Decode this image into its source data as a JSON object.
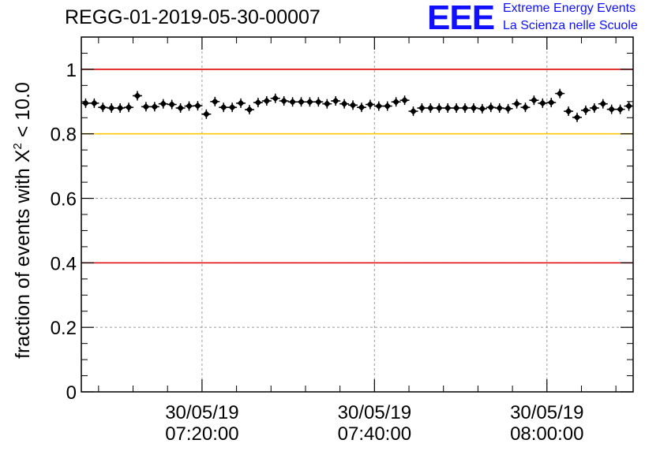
{
  "header": {
    "title": "REGG-01-2019-05-30-00007",
    "logo_text": "EEE",
    "logo_line1": "Extreme Energy Events",
    "logo_line2": "La Scienza nelle Scuole"
  },
  "chart_data": {
    "type": "scatter",
    "title": "REGG-01-2019-05-30-00007",
    "xlabel": "",
    "ylabel": "fraction of events with χ² < 10.0",
    "ylabel_parts": {
      "main": "fraction of events with ",
      "symbol": "X",
      "sup": "2",
      "tail": " < 10.0"
    },
    "xlim": [
      "07:06:00",
      "08:10:00"
    ],
    "ylim": [
      0,
      1.1
    ],
    "yticks": [
      0,
      0.2,
      0.4,
      0.6,
      0.8,
      1
    ],
    "ytick_labels": [
      "0",
      "0.2",
      "0.4",
      "0.6",
      "0.8",
      "1"
    ],
    "xticks": [
      {
        "time": "07:20:00",
        "date": "30/05/19"
      },
      {
        "time": "07:40:00",
        "date": "30/05/19"
      },
      {
        "time": "08:00:00",
        "date": "30/05/19"
      }
    ],
    "grid": true,
    "reference_lines": [
      {
        "y": 1.0,
        "color": "#e00000"
      },
      {
        "y": 0.8,
        "color": "#ffc800"
      },
      {
        "y": 0.4,
        "color": "#e00000"
      }
    ],
    "marker_color": "#000000",
    "x": [
      "07:06:30",
      "07:07:30",
      "07:08:30",
      "07:09:30",
      "07:10:30",
      "07:11:30",
      "07:12:30",
      "07:13:30",
      "07:14:30",
      "07:15:30",
      "07:16:30",
      "07:17:30",
      "07:18:30",
      "07:19:30",
      "07:20:30",
      "07:21:30",
      "07:22:30",
      "07:23:30",
      "07:24:30",
      "07:25:30",
      "07:26:30",
      "07:27:30",
      "07:28:30",
      "07:29:30",
      "07:30:30",
      "07:31:30",
      "07:32:30",
      "07:33:30",
      "07:34:30",
      "07:35:30",
      "07:36:30",
      "07:37:30",
      "07:38:30",
      "07:39:30",
      "07:40:30",
      "07:41:30",
      "07:42:30",
      "07:43:30",
      "07:44:30",
      "07:45:30",
      "07:46:30",
      "07:47:30",
      "07:48:30",
      "07:49:30",
      "07:50:30",
      "07:51:30",
      "07:52:30",
      "07:53:30",
      "07:54:30",
      "07:55:30",
      "07:56:30",
      "07:57:30",
      "07:58:30",
      "07:59:30",
      "08:00:30",
      "08:01:30",
      "08:02:30",
      "08:03:30",
      "08:04:30",
      "08:05:30",
      "08:06:30",
      "08:07:30",
      "08:08:30",
      "08:09:30"
    ],
    "y": [
      0.895,
      0.895,
      0.882,
      0.88,
      0.88,
      0.882,
      0.918,
      0.884,
      0.884,
      0.893,
      0.891,
      0.88,
      0.886,
      0.887,
      0.861,
      0.9,
      0.882,
      0.882,
      0.895,
      0.875,
      0.897,
      0.902,
      0.91,
      0.902,
      0.899,
      0.899,
      0.899,
      0.899,
      0.893,
      0.902,
      0.893,
      0.889,
      0.882,
      0.891,
      0.886,
      0.886,
      0.899,
      0.904,
      0.87,
      0.88,
      0.88,
      0.88,
      0.88,
      0.88,
      0.88,
      0.88,
      0.878,
      0.882,
      0.88,
      0.878,
      0.893,
      0.882,
      0.904,
      0.895,
      0.897,
      0.925,
      0.87,
      0.851,
      0.873,
      0.88,
      0.893,
      0.876,
      0.876,
      0.886
    ]
  }
}
